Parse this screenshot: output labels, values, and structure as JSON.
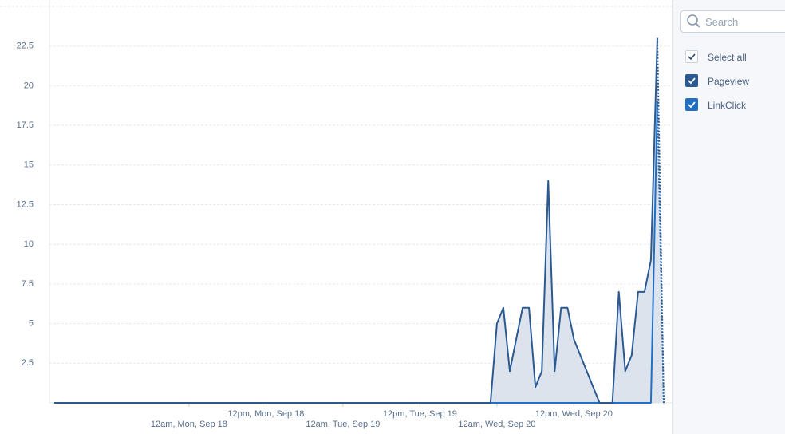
{
  "chart_data": {
    "type": "line",
    "categories": [
      null,
      null,
      null,
      null,
      null,
      null,
      null,
      null,
      null,
      null,
      null,
      null,
      null,
      null,
      null,
      null,
      null,
      null,
      null,
      null,
      null,
      "12am, Mon, Sep 18",
      null,
      null,
      null,
      null,
      null,
      null,
      null,
      null,
      null,
      null,
      null,
      "12pm, Mon, Sep 18",
      null,
      null,
      null,
      null,
      null,
      null,
      null,
      null,
      null,
      null,
      null,
      "12am, Tue, Sep 19",
      null,
      null,
      null,
      null,
      null,
      null,
      null,
      null,
      null,
      null,
      null,
      "12pm, Tue, Sep 19",
      null,
      null,
      null,
      null,
      null,
      null,
      null,
      null,
      null,
      null,
      null,
      "12am, Wed, Sep 20",
      null,
      null,
      null,
      null,
      null,
      null,
      null,
      null,
      null,
      null,
      null,
      "12pm, Wed, Sep 20",
      null,
      null,
      null,
      null,
      null,
      null,
      null,
      null,
      null,
      null,
      null,
      null,
      null,
      null
    ],
    "series": [
      {
        "name": "Pageview",
        "color": "#2b5a93",
        "area_color": "#dce3ec",
        "values": [
          0,
          0,
          0,
          0,
          0,
          0,
          0,
          0,
          0,
          0,
          0,
          0,
          0,
          0,
          0,
          0,
          0,
          0,
          0,
          0,
          0,
          0,
          0,
          0,
          0,
          0,
          0,
          0,
          0,
          0,
          0,
          0,
          0,
          0,
          0,
          0,
          0,
          0,
          0,
          0,
          0,
          0,
          0,
          0,
          0,
          0,
          0,
          0,
          0,
          0,
          0,
          0,
          0,
          0,
          0,
          0,
          0,
          0,
          0,
          0,
          0,
          0,
          0,
          0,
          0,
          0,
          0,
          0,
          0,
          5,
          6,
          2,
          4,
          6,
          6,
          1,
          2,
          14,
          2,
          6,
          6,
          4,
          3,
          2,
          1,
          0,
          0,
          0,
          7,
          2,
          3,
          7,
          7,
          9,
          23,
          0
        ]
      },
      {
        "name": "LinkClick",
        "color": "#1f6fc5",
        "values": [
          0,
          0,
          0,
          0,
          0,
          0,
          0,
          0,
          0,
          0,
          0,
          0,
          0,
          0,
          0,
          0,
          0,
          0,
          0,
          0,
          0,
          0,
          0,
          0,
          0,
          0,
          0,
          0,
          0,
          0,
          0,
          0,
          0,
          0,
          0,
          0,
          0,
          0,
          0,
          0,
          0,
          0,
          0,
          0,
          0,
          0,
          0,
          0,
          0,
          0,
          0,
          0,
          0,
          0,
          0,
          0,
          0,
          0,
          0,
          0,
          0,
          0,
          0,
          0,
          0,
          0,
          0,
          0,
          0,
          0,
          0,
          0,
          0,
          0,
          0,
          0,
          0,
          0,
          0,
          0,
          0,
          0,
          0,
          0,
          0,
          0,
          0,
          0,
          0,
          0,
          0,
          0,
          0,
          0,
          19,
          0
        ]
      }
    ],
    "ylim": [
      0,
      25
    ],
    "yticks": [
      2.5,
      5,
      7.5,
      10,
      12.5,
      15,
      17.5,
      20,
      22.5
    ],
    "grid": true
  },
  "sidebar": {
    "search_placeholder": "Search",
    "select_all": "Select all"
  }
}
